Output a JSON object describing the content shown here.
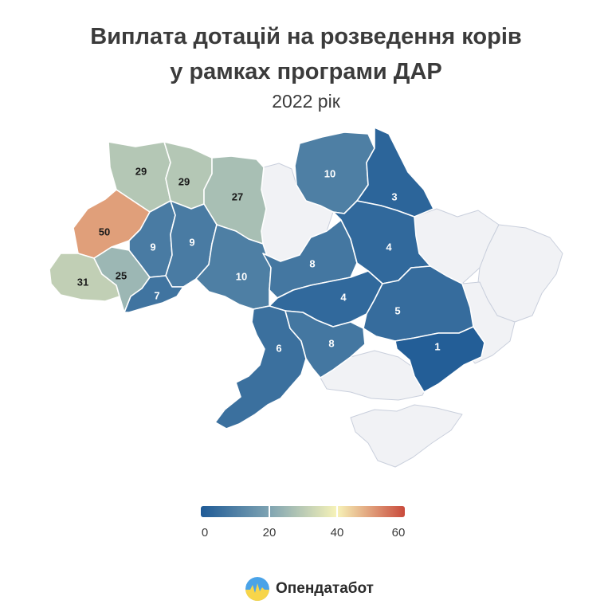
{
  "title_line1": "Виплата дотацій на розведення корів",
  "title_line2": "у рамках програми ДАР",
  "subtitle": "2022 рік",
  "legend": {
    "min": 0,
    "max": 60,
    "ticks": [
      "0",
      "20",
      "40",
      "60"
    ],
    "colors": [
      "#1e5a96",
      "#7ea3b2",
      "#f7f3b8",
      "#c94a3c"
    ]
  },
  "colors": {
    "no_data": "#f1f2f5",
    "no_data_border": "#c9cfdc"
  },
  "regions": [
    {
      "id": "volyn",
      "value": 29
    },
    {
      "id": "rivne",
      "value": 29
    },
    {
      "id": "zhytomyr",
      "value": 27
    },
    {
      "id": "lviv",
      "value": 50
    },
    {
      "id": "zakarpattia",
      "value": 31
    },
    {
      "id": "ivano-frankivsk",
      "value": 25
    },
    {
      "id": "ternopil",
      "value": 9
    },
    {
      "id": "khmelnytskyi",
      "value": 9
    },
    {
      "id": "chernivtsi",
      "value": 7
    },
    {
      "id": "vinnytsia",
      "value": 10
    },
    {
      "id": "chernihiv",
      "value": 10
    },
    {
      "id": "sumy",
      "value": 3
    },
    {
      "id": "cherkasy",
      "value": 8
    },
    {
      "id": "poltava",
      "value": 4
    },
    {
      "id": "kirovohrad",
      "value": 4
    },
    {
      "id": "dnipropetrovsk",
      "value": 5
    },
    {
      "id": "zaporizhzhia",
      "value": 1
    },
    {
      "id": "odesa",
      "value": 6
    },
    {
      "id": "mykolaiv",
      "value": 8
    },
    {
      "id": "kyiv",
      "value": null
    },
    {
      "id": "kharkiv",
      "value": null
    },
    {
      "id": "luhansk",
      "value": null
    },
    {
      "id": "donetsk",
      "value": null
    },
    {
      "id": "kherson",
      "value": null
    },
    {
      "id": "crimea",
      "value": null
    }
  ],
  "brand": {
    "name": "Опендатабот"
  }
}
